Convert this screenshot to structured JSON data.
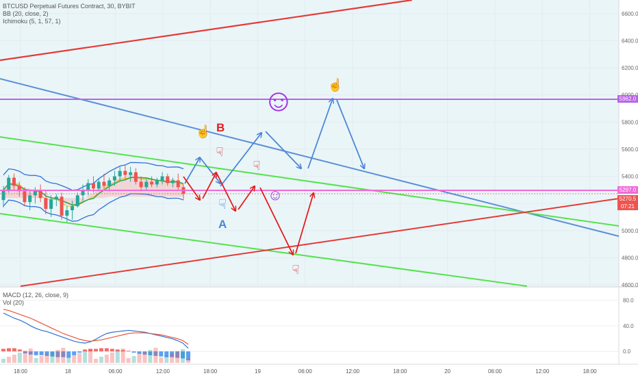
{
  "legend": {
    "symbol_line": "BTCUSD Perpetual Futures Contract, 30, BYBIT",
    "bb_line": "BB (20, close, 2)",
    "ichimoku_line": "Ichimoku (5, 1, 57, 1)",
    "macd_line": "MACD (12, 26, close, 9)",
    "vol_line": "Vol (20)"
  },
  "price_tags": {
    "upper_level": "5962.0",
    "lower_level": "5297.0",
    "last_price": "5270.5",
    "countdown": "07:21"
  },
  "annotations": {
    "label_b": "B",
    "label_a": "A",
    "smiley_big": "☺",
    "smiley_small": "☺",
    "hand_up": "☝",
    "hand_down": "☟"
  },
  "colors": {
    "red_line": "#e53935",
    "blue_line": "#5b8fd6",
    "green_line": "#52e34a",
    "purple_line": "#b964e8",
    "pink_line": "#f06bd6",
    "annot_red": "#e31c1c",
    "annot_blue": "#4a86d6",
    "smiley": "#a234e8",
    "bb_band": "#2f6fd8",
    "cloud": "#f2c9c9",
    "tenkan": "#f2c230",
    "up_candle": "#26a69a",
    "down_candle": "#ef5350",
    "macd": "#2b6fd6",
    "signal": "#e8553a",
    "bg_tint": "#eaf5f8"
  },
  "chart_data": [
    {
      "type": "candlestick",
      "title": "BTCUSD Perpetual Futures Contract, 30, BYBIT",
      "ylim": [
        4590,
        6700
      ],
      "y_ticks": [
        "6600.0",
        "6400.0",
        "6200.0",
        "6000.0",
        "5800.0",
        "5600.0",
        "5400.0",
        "5200.0",
        "5000.0",
        "4800.0",
        "4600.0"
      ],
      "x_ticks": [
        "18:00",
        "18",
        "06:00",
        "12:00",
        "18:00",
        "19",
        "06:00",
        "12:00",
        "18:00",
        "20",
        "06:00",
        "12:00",
        "18:00"
      ],
      "horizontal_levels": [
        5962.0,
        5297.0,
        5270.5
      ],
      "candles": [
        [
          5225,
          5330,
          5170,
          5300
        ],
        [
          5300,
          5410,
          5280,
          5390
        ],
        [
          5390,
          5420,
          5300,
          5330
        ],
        [
          5330,
          5360,
          5250,
          5290
        ],
        [
          5290,
          5320,
          5180,
          5210
        ],
        [
          5210,
          5300,
          5150,
          5260
        ],
        [
          5260,
          5320,
          5200,
          5300
        ],
        [
          5300,
          5340,
          5210,
          5240
        ],
        [
          5240,
          5300,
          5120,
          5160
        ],
        [
          5160,
          5260,
          5100,
          5230
        ],
        [
          5230,
          5270,
          5180,
          5250
        ],
        [
          5250,
          5280,
          5080,
          5110
        ],
        [
          5110,
          5180,
          5060,
          5150
        ],
        [
          5150,
          5220,
          5080,
          5180
        ],
        [
          5180,
          5280,
          5170,
          5260
        ],
        [
          5260,
          5340,
          5220,
          5300
        ],
        [
          5300,
          5380,
          5260,
          5350
        ],
        [
          5350,
          5400,
          5280,
          5310
        ],
        [
          5310,
          5380,
          5290,
          5360
        ],
        [
          5360,
          5420,
          5310,
          5330
        ],
        [
          5330,
          5390,
          5290,
          5370
        ],
        [
          5370,
          5440,
          5330,
          5400
        ],
        [
          5400,
          5470,
          5370,
          5440
        ],
        [
          5440,
          5480,
          5380,
          5410
        ],
        [
          5410,
          5470,
          5360,
          5430
        ],
        [
          5430,
          5460,
          5340,
          5360
        ],
        [
          5360,
          5400,
          5290,
          5320
        ],
        [
          5320,
          5380,
          5300,
          5360
        ],
        [
          5360,
          5400,
          5320,
          5340
        ],
        [
          5340,
          5390,
          5320,
          5370
        ],
        [
          5370,
          5430,
          5340,
          5400
        ],
        [
          5400,
          5420,
          5330,
          5350
        ],
        [
          5350,
          5390,
          5320,
          5370
        ],
        [
          5370,
          5420,
          5300,
          5320
        ],
        [
          5320,
          5340,
          5230,
          5270
        ]
      ]
    },
    {
      "type": "line",
      "title": "MACD (12, 26, close, 9)",
      "ylim": [
        -18,
        100
      ],
      "y_ticks": [
        "80.0",
        "40.0",
        "0.0"
      ],
      "series": [
        {
          "values": [
            60,
            56,
            52,
            49,
            45,
            40,
            36,
            33,
            31,
            28,
            25,
            22,
            19,
            16,
            14,
            13,
            15,
            19,
            24,
            28,
            30,
            31,
            32,
            33,
            32,
            31,
            30,
            28,
            26,
            24,
            22,
            20,
            17,
            13,
            5
          ]
        },
        {
          "values": [
            66,
            64,
            61,
            58,
            55,
            52,
            48,
            44,
            40,
            36,
            32,
            28,
            25,
            22,
            19,
            17,
            16,
            17,
            18,
            20,
            22,
            24,
            26,
            28,
            29,
            29,
            29,
            28,
            27,
            26,
            24,
            22,
            20,
            17,
            11
          ]
        }
      ],
      "histogram": [
        4,
        5,
        5,
        3,
        -3,
        -5,
        -6,
        -6,
        -7,
        -8,
        -9,
        -9,
        -10,
        -6,
        -2,
        3,
        4,
        4,
        5,
        5,
        4,
        3,
        2,
        1,
        -2,
        -4,
        -5,
        -6,
        -7,
        -8,
        -9,
        -9,
        -10,
        -11,
        -14
      ]
    }
  ]
}
